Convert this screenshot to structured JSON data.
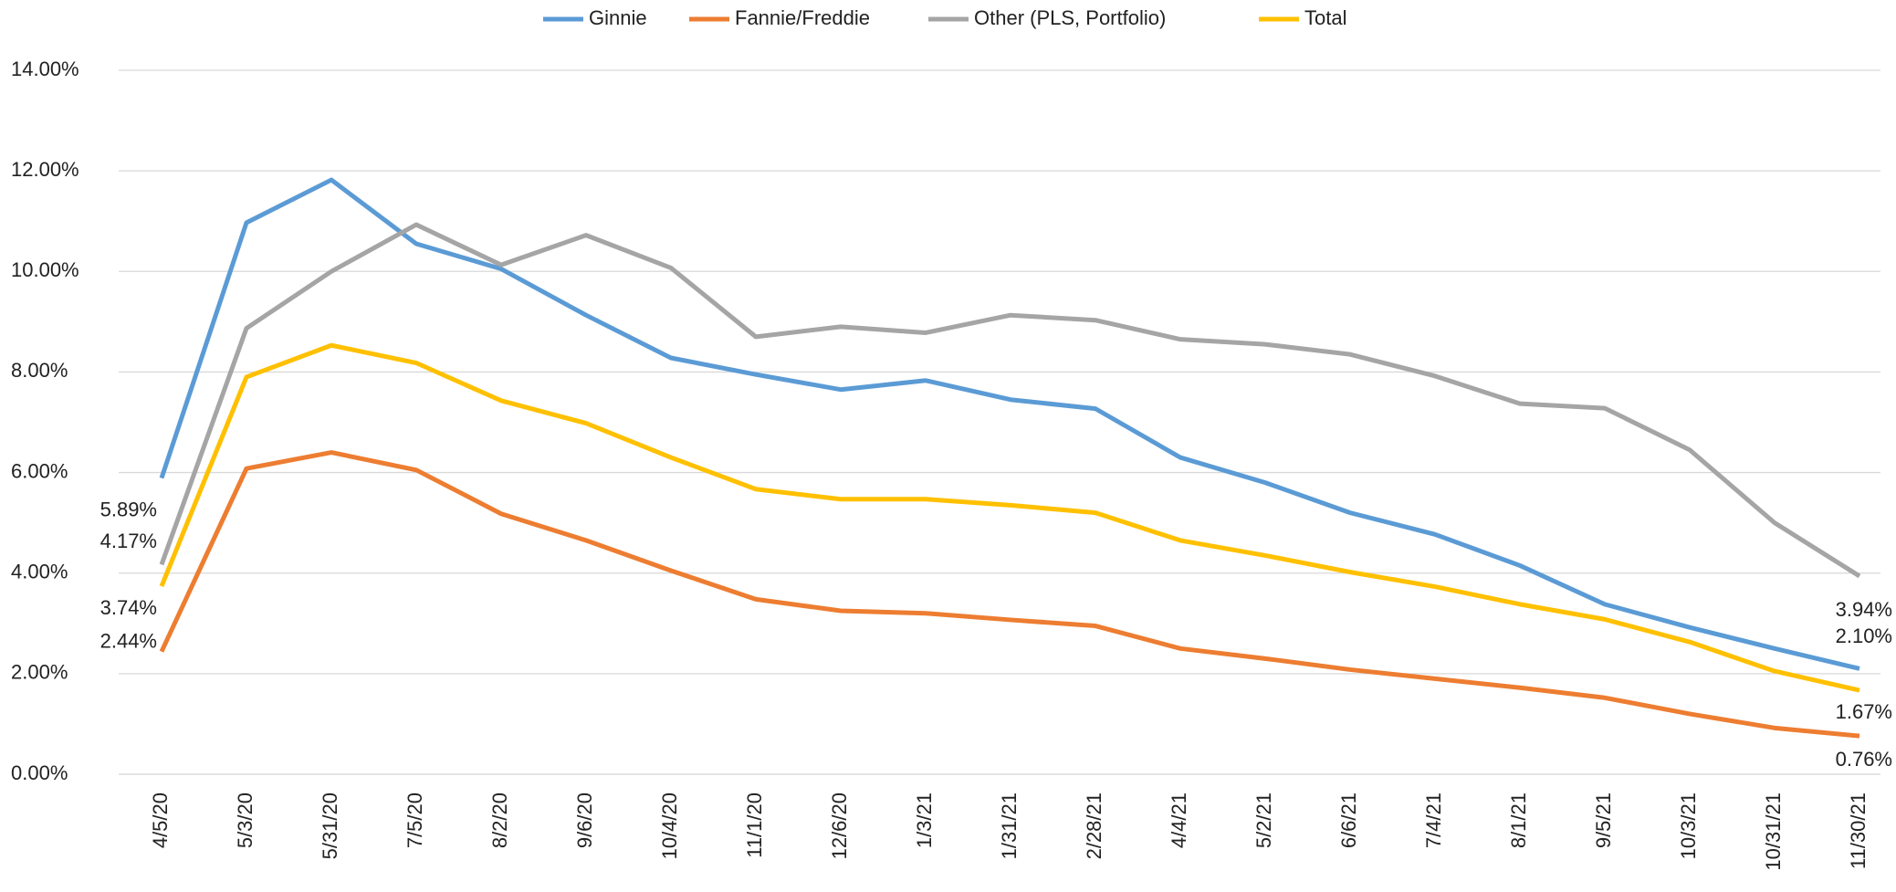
{
  "chart_data": {
    "type": "line",
    "categories": [
      "4/5/20",
      "5/3/20",
      "5/31/20",
      "7/5/20",
      "8/2/20",
      "9/6/20",
      "10/4/20",
      "11/1/20",
      "12/6/20",
      "1/3/21",
      "1/31/21",
      "2/28/21",
      "4/4/21",
      "5/2/21",
      "6/6/21",
      "7/4/21",
      "8/1/21",
      "9/5/21",
      "10/3/21",
      "10/31/21",
      "11/30/21"
    ],
    "series": [
      {
        "name": "Ginnie",
        "color": "#5b9bd5",
        "values": [
          5.89,
          10.97,
          11.82,
          10.55,
          10.05,
          9.13,
          8.28,
          7.95,
          7.65,
          7.83,
          7.45,
          7.27,
          6.3,
          5.8,
          5.2,
          4.77,
          4.15,
          3.38,
          2.92,
          2.5,
          2.1
        ],
        "value_labels": [
          "5.89%",
          null,
          null,
          null,
          null,
          null,
          null,
          null,
          null,
          null,
          null,
          null,
          null,
          null,
          null,
          null,
          null,
          null,
          null,
          null,
          "2.10%"
        ]
      },
      {
        "name": "Fannie/Freddie",
        "color": "#ed7d31",
        "values": [
          2.44,
          6.08,
          6.4,
          6.05,
          5.18,
          4.65,
          4.05,
          3.48,
          3.25,
          3.2,
          3.07,
          2.95,
          2.5,
          2.3,
          2.08,
          1.9,
          1.72,
          1.52,
          1.2,
          0.92,
          0.76
        ],
        "value_labels": [
          "2.44%",
          null,
          null,
          null,
          null,
          null,
          null,
          null,
          null,
          null,
          null,
          null,
          null,
          null,
          null,
          null,
          null,
          null,
          null,
          null,
          "0.76%"
        ]
      },
      {
        "name": "Other (PLS, Portfolio)",
        "color": "#a5a5a5",
        "values": [
          4.17,
          8.87,
          10.0,
          10.93,
          10.13,
          10.72,
          10.07,
          8.7,
          8.9,
          8.78,
          9.13,
          9.03,
          8.65,
          8.55,
          8.35,
          7.92,
          7.37,
          7.28,
          6.45,
          5.0,
          3.94
        ],
        "value_labels": [
          "4.17%",
          null,
          null,
          null,
          null,
          null,
          null,
          null,
          null,
          null,
          null,
          null,
          null,
          null,
          null,
          null,
          null,
          null,
          null,
          null,
          "3.94%"
        ]
      },
      {
        "name": "Total",
        "color": "#ffc000",
        "values": [
          3.74,
          7.9,
          8.53,
          8.18,
          7.43,
          6.98,
          6.3,
          5.67,
          5.47,
          5.47,
          5.35,
          5.2,
          4.65,
          4.35,
          4.02,
          3.73,
          3.38,
          3.08,
          2.63,
          2.05,
          1.67
        ],
        "value_labels": [
          "3.74%",
          null,
          null,
          null,
          null,
          null,
          null,
          null,
          null,
          null,
          null,
          null,
          null,
          null,
          null,
          null,
          null,
          null,
          null,
          null,
          "1.67%"
        ]
      }
    ],
    "ylim": [
      0,
      14
    ],
    "yticks": [
      {
        "value": 0,
        "label": "0.00%"
      },
      {
        "value": 2,
        "label": "2.00%"
      },
      {
        "value": 4,
        "label": "4.00%"
      },
      {
        "value": 6,
        "label": "6.00%"
      },
      {
        "value": 8,
        "label": "8.00%"
      },
      {
        "value": 10,
        "label": "10.00%"
      },
      {
        "value": 12,
        "label": "12.00%"
      },
      {
        "value": 14,
        "label": "14.00%"
      }
    ],
    "grid": true,
    "legend": "top"
  }
}
